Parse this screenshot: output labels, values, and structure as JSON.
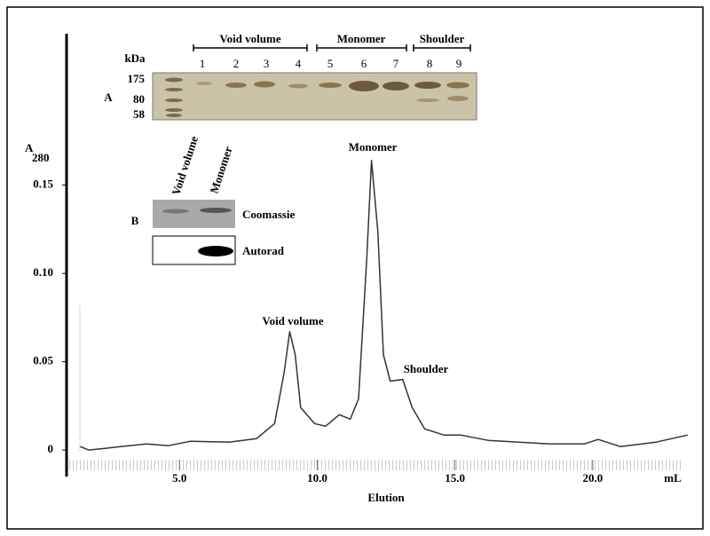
{
  "chart_data": {
    "type": "line",
    "x_label": "Elution",
    "x_unit": "mL",
    "y_label": "A",
    "y_label_sub": "280",
    "x": [
      1.4,
      1.7,
      2.3,
      3.8,
      4.6,
      5.4,
      6.8,
      7.8,
      8.45,
      8.8,
      9.0,
      9.2,
      9.4,
      9.9,
      10.3,
      10.8,
      11.2,
      11.5,
      11.8,
      11.97,
      12.2,
      12.4,
      12.65,
      13.1,
      13.45,
      13.9,
      14.6,
      15.2,
      16.2,
      18.45,
      19.7,
      20.2,
      21.0,
      22.3,
      23.45
    ],
    "values": [
      0.002,
      0,
      0.001,
      0.0035,
      0.0025,
      0.005,
      0.0045,
      0.0065,
      0.015,
      0.044,
      0.067,
      0.054,
      0.024,
      0.015,
      0.0135,
      0.02,
      0.0175,
      0.029,
      0.109,
      0.164,
      0.124,
      0.054,
      0.039,
      0.04,
      0.024,
      0.012,
      0.0085,
      0.0085,
      0.0055,
      0.0035,
      0.0035,
      0.006,
      0.002,
      0.0045,
      0.0085
    ],
    "color": "#333333",
    "xlim": [
      0.9,
      23.5
    ],
    "ylim": [
      -0.014,
      0.233
    ],
    "xticks": [
      {
        "value": 5,
        "label": "5.0"
      },
      {
        "value": 10,
        "label": "10.0"
      },
      {
        "value": 15,
        "label": "15.0"
      },
      {
        "value": 20,
        "label": "20.0"
      }
    ],
    "yticks": [
      0,
      0.05,
      {
        "value": 0.1,
        "label": "0.10"
      },
      0.15
    ],
    "annotations": [
      "Void volume",
      "Monomer",
      "Shoulder"
    ]
  },
  "panel_a": {
    "letter": "A",
    "unit": "kDa",
    "markers": [
      "175",
      "80",
      "58"
    ],
    "lanes": [
      "1",
      "2",
      "3",
      "4",
      "5",
      "6",
      "7",
      "8",
      "9"
    ],
    "groups": [
      "Void volume",
      "Monomer",
      "Shoulder"
    ]
  },
  "panel_b": {
    "letter": "B",
    "lanes": [
      "Void volume",
      "Monomer"
    ],
    "rows": [
      "Coomassie",
      "Autorad"
    ]
  }
}
